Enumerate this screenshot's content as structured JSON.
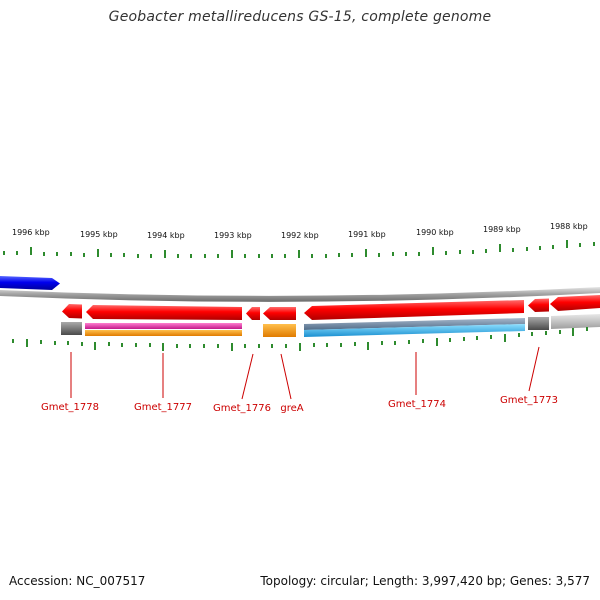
{
  "title": "Geobacter metallireducens GS-15, complete genome",
  "ruler": {
    "labels": [
      "1996 kbp",
      "1995 kbp",
      "1994 kbp",
      "1993 kbp",
      "1992 kbp",
      "1991 kbp",
      "1990 kbp",
      "1989 kbp",
      "1988 kbp"
    ]
  },
  "genes": [
    {
      "name": "Gmet_1778",
      "color": "#cc0000"
    },
    {
      "name": "Gmet_1777",
      "color": "#cc0000"
    },
    {
      "name": "Gmet_1776",
      "color": "#cc0000"
    },
    {
      "name": "greA",
      "color": "#cc0000"
    },
    {
      "name": "Gmet_1774",
      "color": "#cc0000"
    },
    {
      "name": "Gmet_1773",
      "color": "#cc0000"
    }
  ],
  "colors": {
    "forward_strand": "#0000dd",
    "reverse_strand": "#ff0000",
    "backbone": "#888888",
    "ticks": "#2e8b2e",
    "label_text": "#cc0000",
    "go_pink": "#e0309a",
    "go_orange": "#ff9900",
    "go_cyan": "#33bbee",
    "go_gray": "#777777",
    "go_steel": "#6688aa"
  },
  "footer": {
    "accession": "Accession: NC_007517",
    "summary": "Topology: circular; Length: 3,997,420 bp; Genes: 3,577"
  }
}
